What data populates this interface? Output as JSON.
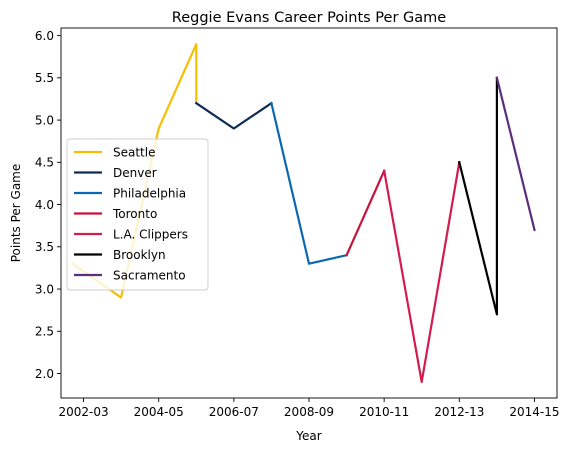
{
  "chart_data": {
    "type": "line",
    "title": "Reggie Evans Career Points Per Game",
    "xlabel": "Year",
    "ylabel": "Points Per Game",
    "x_ticks": [
      {
        "v": 0,
        "label": "2002-03"
      },
      {
        "v": 2,
        "label": "2004-05"
      },
      {
        "v": 4,
        "label": "2006-07"
      },
      {
        "v": 6,
        "label": "2008-09"
      },
      {
        "v": 8,
        "label": "2010-11"
      },
      {
        "v": 10,
        "label": "2012-13"
      },
      {
        "v": 12,
        "label": "2014-15"
      }
    ],
    "y_ticks": [
      "2.0",
      "2.5",
      "3.0",
      "3.5",
      "4.0",
      "4.5",
      "5.0",
      "5.5",
      "6.0"
    ],
    "xlim": [
      -0.6,
      12.6
    ],
    "ylim": [
      1.71,
      6.09
    ],
    "grid": false,
    "legend_position": "center-left",
    "series": [
      {
        "name": "Seattle",
        "color": "#f5c000",
        "points": [
          [
            -0.3,
            3.3
          ],
          [
            1,
            2.9
          ],
          [
            2,
            4.9
          ],
          [
            3,
            5.9
          ],
          [
            3,
            5.2
          ]
        ]
      },
      {
        "name": "Denver",
        "color": "#0d2b55",
        "points": [
          [
            3,
            5.2
          ],
          [
            4,
            4.9
          ],
          [
            5,
            5.2
          ]
        ]
      },
      {
        "name": "Philadelphia",
        "color": "#0868b2",
        "points": [
          [
            5,
            5.2
          ],
          [
            6,
            3.3
          ],
          [
            7,
            3.4
          ]
        ]
      },
      {
        "name": "Toronto",
        "color": "#c8143c",
        "points": [
          [
            7,
            3.4
          ],
          [
            8,
            4.4
          ]
        ]
      },
      {
        "name": "L.A. Clippers",
        "color": "#d41b4d",
        "points": [
          [
            8,
            4.4
          ],
          [
            9,
            1.9
          ],
          [
            10,
            4.5
          ]
        ]
      },
      {
        "name": "Brooklyn",
        "color": "#000000",
        "points": [
          [
            10,
            4.5
          ],
          [
            11,
            2.7
          ],
          [
            11,
            5.5
          ]
        ]
      },
      {
        "name": "Sacramento",
        "color": "#5a2d81",
        "points": [
          [
            11,
            5.5
          ],
          [
            12,
            3.7
          ]
        ]
      }
    ]
  }
}
